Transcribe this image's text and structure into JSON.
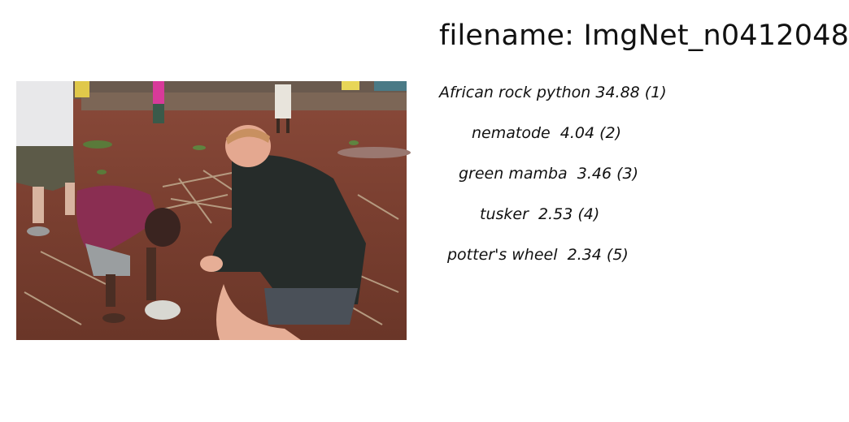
{
  "header": {
    "filename": "filename: ImgNet_n0412048"
  },
  "predictions": [
    {
      "label": "African rock python 34.88 (1)"
    },
    {
      "label": "nematode  4.04 (2)"
    },
    {
      "label": "green mamba  3.46 (3)"
    },
    {
      "label": "tusker  2.53 (4)"
    },
    {
      "label": "potter's wheel  2.34 (5)"
    }
  ]
}
